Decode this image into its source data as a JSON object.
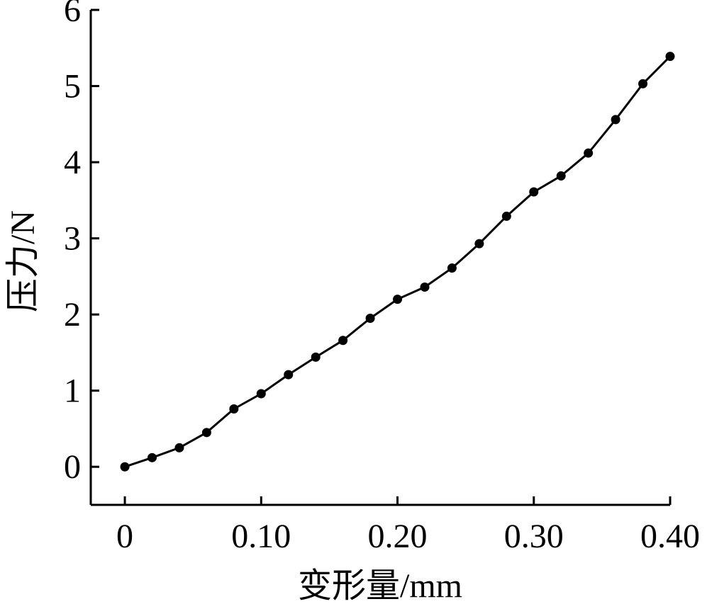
{
  "chart_data": {
    "type": "line",
    "title": "",
    "xlabel": "变形量/mm",
    "ylabel": "压力/N",
    "xlim": [
      -0.025,
      0.4
    ],
    "ylim": [
      -0.5,
      6
    ],
    "xticks": [
      0,
      0.1,
      0.2,
      0.3,
      0.4
    ],
    "xtick_labels": [
      "0",
      "0.10",
      "0.20",
      "0.30",
      "0.40"
    ],
    "yticks": [
      0,
      1,
      2,
      3,
      4,
      5,
      6
    ],
    "ytick_labels": [
      "0",
      "1",
      "2",
      "3",
      "4",
      "5",
      "6"
    ],
    "grid": false,
    "legend": "none",
    "series": [
      {
        "color": "#000000",
        "marker": "circle",
        "x": [
          0,
          0.02,
          0.04,
          0.06,
          0.08,
          0.1,
          0.12,
          0.14,
          0.16,
          0.18,
          0.2,
          0.22,
          0.24,
          0.26,
          0.28,
          0.3,
          0.32,
          0.34,
          0.36,
          0.38,
          0.4
        ],
        "y": [
          0.0,
          0.12,
          0.25,
          0.45,
          0.76,
          0.96,
          1.21,
          1.44,
          1.66,
          1.95,
          2.2,
          2.36,
          2.61,
          2.93,
          3.29,
          3.61,
          3.82,
          4.12,
          4.56,
          5.03,
          5.39
        ]
      }
    ]
  }
}
